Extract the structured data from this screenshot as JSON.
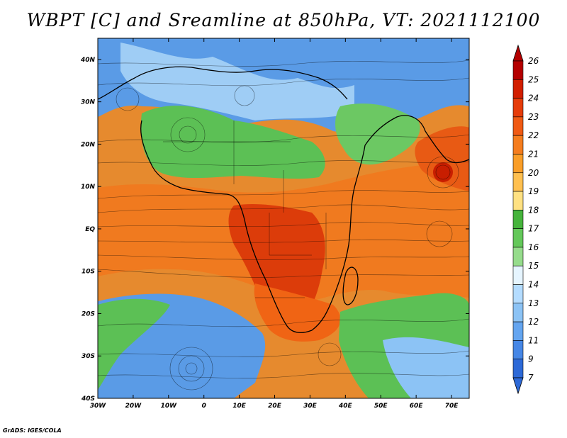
{
  "title": "WBPT [C] and Sreamline at 850hPa, VT: 2021112100",
  "credit": "GrADS: IGES/COLA",
  "chart_data": {
    "type": "heatmap",
    "title": "WBPT [C] and Sreamline at 850hPa, VT: 2021112100",
    "xlim": [
      -30,
      75
    ],
    "ylim": [
      -40,
      45
    ],
    "x_ticks": [
      {
        "value": -30,
        "label": "30W"
      },
      {
        "value": -20,
        "label": "20W"
      },
      {
        "value": -10,
        "label": "10W"
      },
      {
        "value": 0,
        "label": "0"
      },
      {
        "value": 10,
        "label": "10E"
      },
      {
        "value": 20,
        "label": "20E"
      },
      {
        "value": 30,
        "label": "30E"
      },
      {
        "value": 40,
        "label": "40E"
      },
      {
        "value": 50,
        "label": "50E"
      },
      {
        "value": 60,
        "label": "60E"
      },
      {
        "value": 70,
        "label": "70E"
      }
    ],
    "y_ticks": [
      {
        "value": 40,
        "label": "40N"
      },
      {
        "value": 30,
        "label": "30N"
      },
      {
        "value": 20,
        "label": "20N"
      },
      {
        "value": 10,
        "label": "10N"
      },
      {
        "value": 0,
        "label": "EQ"
      },
      {
        "value": -10,
        "label": "10S"
      },
      {
        "value": -20,
        "label": "20S"
      },
      {
        "value": -30,
        "label": "30S"
      },
      {
        "value": -40,
        "label": "40S"
      }
    ],
    "colorbar": {
      "labels": [
        "26",
        "25",
        "24",
        "23",
        "22",
        "21",
        "20",
        "19",
        "18",
        "17",
        "16",
        "15",
        "14",
        "13",
        "12",
        "11",
        "9",
        "7"
      ],
      "colors": [
        "#b40000",
        "#d21e00",
        "#e63c0a",
        "#f05a14",
        "#f57d1e",
        "#fa9e28",
        "#ffc050",
        "#ffe182",
        "#46b43c",
        "#64c85a",
        "#96dc8c",
        "#e6f5ff",
        "#b4dcff",
        "#8cc3f5",
        "#64a5f0",
        "#4687e6",
        "#2d69d7"
      ]
    }
  }
}
